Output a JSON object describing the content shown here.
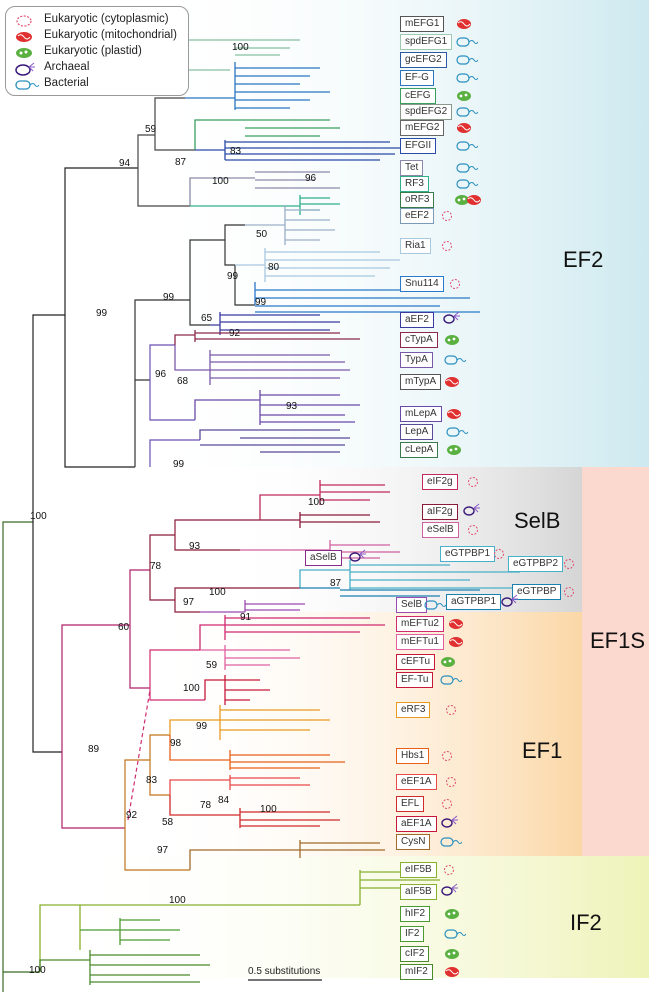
{
  "legend": {
    "cytoplasmic": "Eukaryotic (cytoplasmic)",
    "mitochondrial": "Eukaryotic (mitochondrial)",
    "plastid": "Eukaryotic (plastid)",
    "archaeal": "Archaeal",
    "bacterial": "Bacterial"
  },
  "groups": {
    "ef2": "EF2",
    "selb": "SelB",
    "ef1s": "EF1S",
    "ef1": "EF1",
    "if2": "IF2"
  },
  "scale_label": "0.5 substitutions",
  "labels": {
    "mEFG1": "mEFG1",
    "spdEFG1": "spdEFG1",
    "gcEFG2": "gcEFG2",
    "EF_G": "EF-G",
    "cEFG": "cEFG",
    "spdEFG2": "spdEFG2",
    "mEFG2": "mEFG2",
    "EFGII": "EFGII",
    "Tet": "Tet",
    "RF3": "RF3",
    "oRF3": "oRF3",
    "eEF2": "eEF2",
    "Ria1": "Ria1",
    "Snu114": "Snu114",
    "aEF2": "aEF2",
    "cTypA": "cTypA",
    "TypA": "TypA",
    "mTypA": "mTypA",
    "mLepA": "mLepA",
    "LepA": "LepA",
    "cLepA": "cLepA",
    "eIF2g": "eIF2g",
    "aIF2g": "aIF2g",
    "eSelB": "eSelB",
    "aSelB": "aSelB",
    "eGTPBP1": "eGTPBP1",
    "eGTPBP2": "eGTPBP2",
    "eGTPBP": "eGTPBP",
    "SelB": "SelB",
    "aGTPBP1": "aGTPBP1",
    "mEFTu2": "mEFTu2",
    "mEFTu1": "mEFTu1",
    "cEFTu": "cEFTu",
    "EF_Tu": "EF-Tu",
    "eRF3": "eRF3",
    "Hbs1": "Hbs1",
    "eEF1A": "eEF1A",
    "EFL": "EFL",
    "aEF1A": "aEF1A",
    "CysN": "CysN",
    "eIF5B": "eIF5B",
    "aIF5B": "aIF5B",
    "hIF2": "hIF2",
    "IF2": "IF2",
    "cIF2": "cIF2",
    "mIF2": "mIF2"
  },
  "bootstrap": {
    "b100a": "100",
    "b59": "59",
    "b94": "94",
    "b87": "87",
    "b83": "83",
    "b100b": "100",
    "b96a": "96",
    "b50": "50",
    "b80": "80",
    "b99a": "99",
    "b99b": "99",
    "b99c": "99",
    "b65": "65",
    "b92a": "92",
    "b96b": "96",
    "b68": "68",
    "b93a": "93",
    "b99d": "99",
    "b99e": "99",
    "b100c": "100",
    "b100d": "100",
    "b93b": "93",
    "b78a": "78",
    "b100e": "100",
    "b87b": "87",
    "b97a": "97",
    "b60": "60",
    "b91": "91",
    "b59b": "59",
    "b100f": "100",
    "b89": "89",
    "b99f": "99",
    "b98": "98",
    "b83b": "83",
    "b78b": "78",
    "b84": "84",
    "b100g": "100",
    "b58": "58",
    "b92b": "92",
    "b97b": "97",
    "b100h": "100",
    "b100i": "100"
  }
}
